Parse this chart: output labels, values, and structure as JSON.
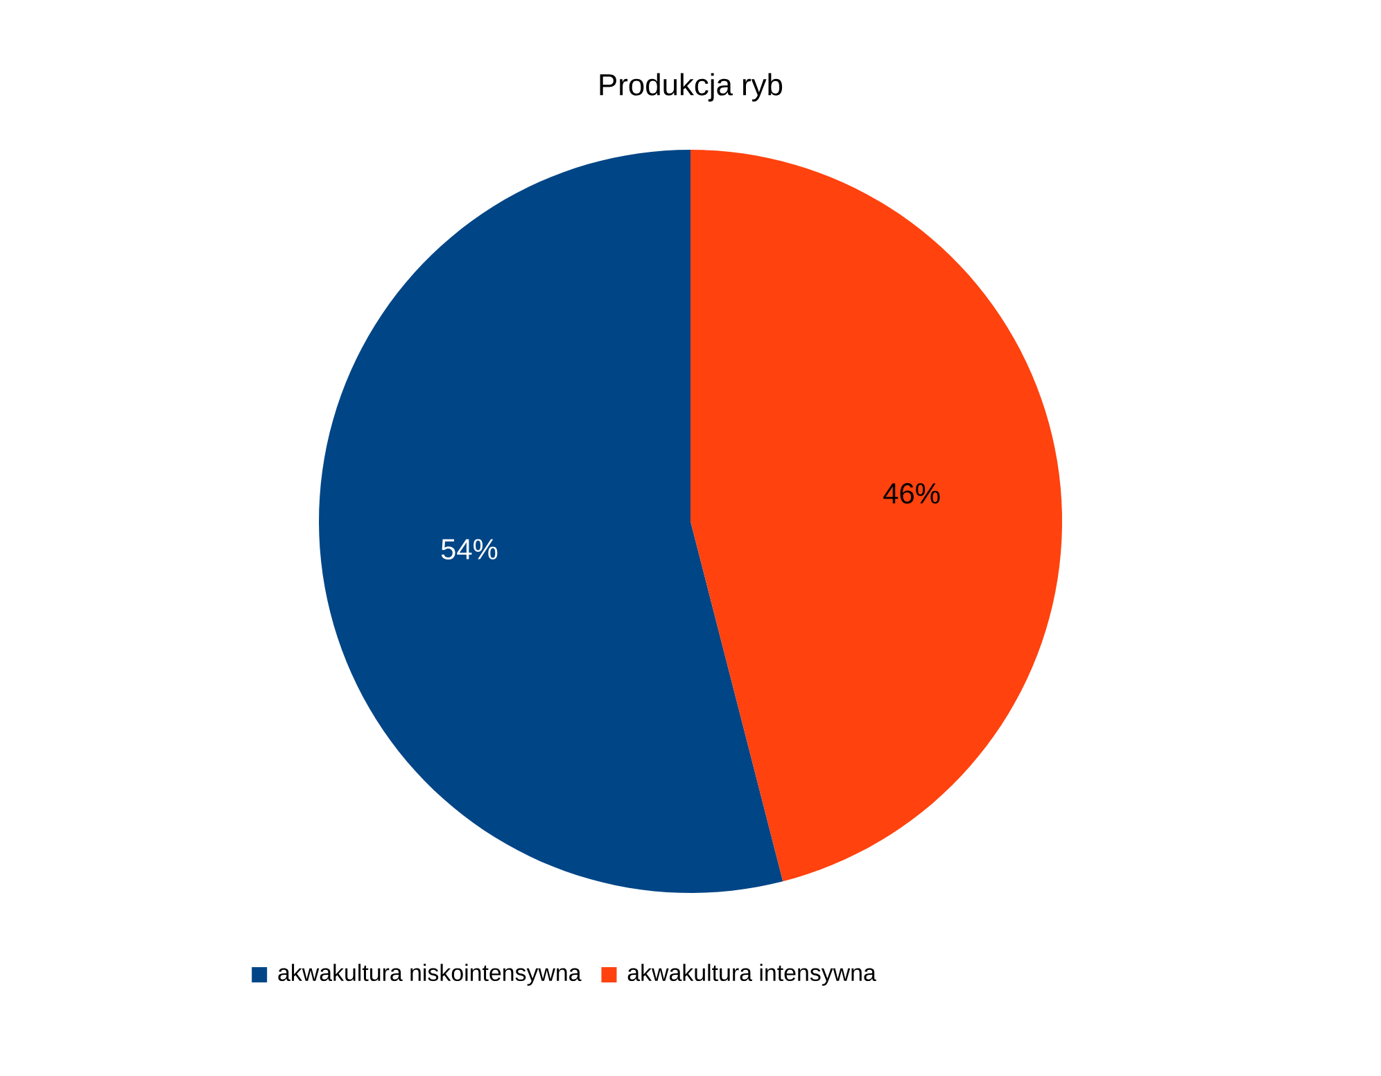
{
  "chart_data": {
    "type": "pie",
    "title": "Produkcja ryb",
    "categories": [
      "akwakultura niskointensywna",
      "akwakultura intensywna"
    ],
    "values": [
      54,
      46
    ],
    "colors": [
      "#004586",
      "#ff420e"
    ],
    "value_labels": [
      "54%",
      "46%"
    ],
    "legend": "bottom"
  }
}
